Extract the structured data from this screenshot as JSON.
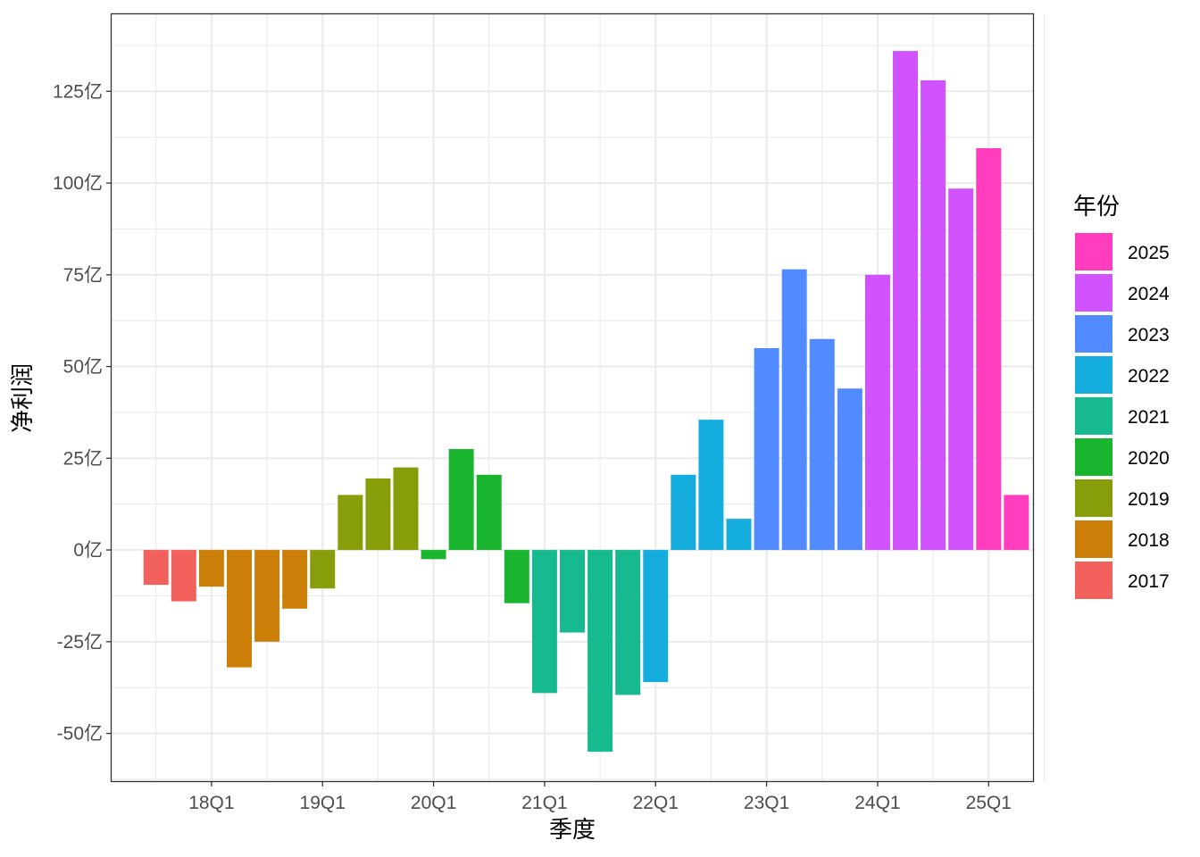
{
  "chart_data": {
    "type": "bar",
    "title": "",
    "xlabel": "季度",
    "ylabel": "净利润",
    "ylim": [
      -63,
      146
    ],
    "y_ticks": [
      -50,
      -25,
      0,
      25,
      50,
      75,
      100,
      125
    ],
    "y_tick_labels": [
      "-50亿",
      "-25亿",
      "0亿",
      "25亿",
      "50亿",
      "75亿",
      "100亿",
      "125亿"
    ],
    "x_tick_labels": [
      "18Q1",
      "19Q1",
      "20Q1",
      "21Q1",
      "22Q1",
      "23Q1",
      "24Q1",
      "25Q1"
    ],
    "x_tick_index": [
      2,
      6,
      10,
      14,
      18,
      22,
      26,
      30
    ],
    "legend_title": "年份",
    "legend": [
      {
        "label": "2025",
        "color": "#FF3DBE"
      },
      {
        "label": "2024",
        "color": "#D152FF"
      },
      {
        "label": "2023",
        "color": "#528BFF"
      },
      {
        "label": "2022",
        "color": "#14ADDE"
      },
      {
        "label": "2021",
        "color": "#17BA8F"
      },
      {
        "label": "2020",
        "color": "#1AB52E"
      },
      {
        "label": "2019",
        "color": "#879E0A"
      },
      {
        "label": "2018",
        "color": "#CC7F08"
      },
      {
        "label": "2017",
        "color": "#F2615C"
      }
    ],
    "bars": [
      {
        "quarter": "17Q3",
        "year": "2017",
        "value": -9.5
      },
      {
        "quarter": "17Q4",
        "year": "2017",
        "value": -14
      },
      {
        "quarter": "18Q1",
        "year": "2018",
        "value": -10
      },
      {
        "quarter": "18Q2",
        "year": "2018",
        "value": -32
      },
      {
        "quarter": "18Q3",
        "year": "2018",
        "value": -25
      },
      {
        "quarter": "18Q4",
        "year": "2018",
        "value": -16
      },
      {
        "quarter": "19Q1",
        "year": "2019",
        "value": -10.5
      },
      {
        "quarter": "19Q2",
        "year": "2019",
        "value": 15
      },
      {
        "quarter": "19Q3",
        "year": "2019",
        "value": 19.5
      },
      {
        "quarter": "19Q4",
        "year": "2019",
        "value": 22.5
      },
      {
        "quarter": "20Q1",
        "year": "2020",
        "value": -2.5
      },
      {
        "quarter": "20Q2",
        "year": "2020",
        "value": 27.5
      },
      {
        "quarter": "20Q3",
        "year": "2020",
        "value": 20.5
      },
      {
        "quarter": "20Q4",
        "year": "2020",
        "value": -14.5
      },
      {
        "quarter": "21Q1",
        "year": "2021",
        "value": -39
      },
      {
        "quarter": "21Q2",
        "year": "2021",
        "value": -22.5
      },
      {
        "quarter": "21Q3",
        "year": "2021",
        "value": -55
      },
      {
        "quarter": "21Q4",
        "year": "2021",
        "value": -39.5
      },
      {
        "quarter": "22Q1",
        "year": "2022",
        "value": -36
      },
      {
        "quarter": "22Q2",
        "year": "2022",
        "value": 20.5
      },
      {
        "quarter": "22Q3",
        "year": "2022",
        "value": 35.5
      },
      {
        "quarter": "22Q4",
        "year": "2022",
        "value": 8.5
      },
      {
        "quarter": "23Q1",
        "year": "2023",
        "value": 55
      },
      {
        "quarter": "23Q2",
        "year": "2023",
        "value": 76.5
      },
      {
        "quarter": "23Q3",
        "year": "2023",
        "value": 57.5
      },
      {
        "quarter": "23Q4",
        "year": "2023",
        "value": 44
      },
      {
        "quarter": "24Q1",
        "year": "2024",
        "value": 75
      },
      {
        "quarter": "24Q2",
        "year": "2024",
        "value": 136
      },
      {
        "quarter": "24Q3",
        "year": "2024",
        "value": 128
      },
      {
        "quarter": "24Q4",
        "year": "2024",
        "value": 98.5
      },
      {
        "quarter": "25Q1",
        "year": "2025",
        "value": 109.5
      },
      {
        "quarter": "25Q2",
        "year": "2025",
        "value": 15
      }
    ]
  }
}
